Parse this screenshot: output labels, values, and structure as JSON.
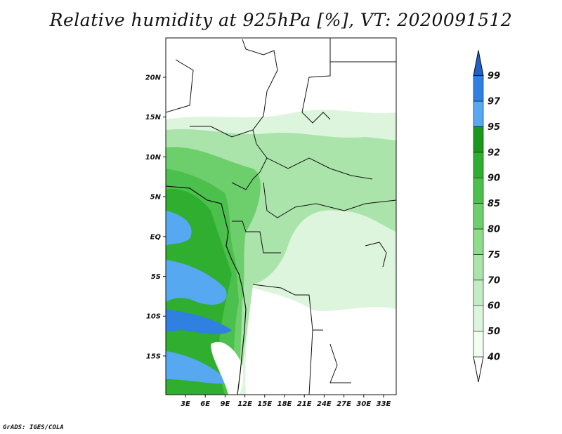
{
  "title": "Relative humidity at 925hPa [%], VT: 2020091512",
  "credit": "GrADS: IGES/COLA",
  "map": {
    "lat_labels": [
      "20N",
      "15N",
      "10N",
      "5N",
      "EQ",
      "5S",
      "10S",
      "15S"
    ],
    "lon_labels": [
      "3E",
      "6E",
      "9E",
      "12E",
      "15E",
      "18E",
      "21E",
      "24E",
      "27E",
      "30E",
      "33E"
    ]
  },
  "colorbar": {
    "levels": [
      "40",
      "50",
      "60",
      "70",
      "75",
      "80",
      "85",
      "90",
      "92",
      "95",
      "97",
      "99"
    ],
    "colors": [
      "#f0fff0",
      "#dcf5dc",
      "#c4ecc4",
      "#aae4aa",
      "#8edc8e",
      "#6ccf6c",
      "#4cc04c",
      "#2fae2f",
      "#1b971b",
      "#56a8f0",
      "#2f80e0",
      "#1e5fc8"
    ]
  }
}
